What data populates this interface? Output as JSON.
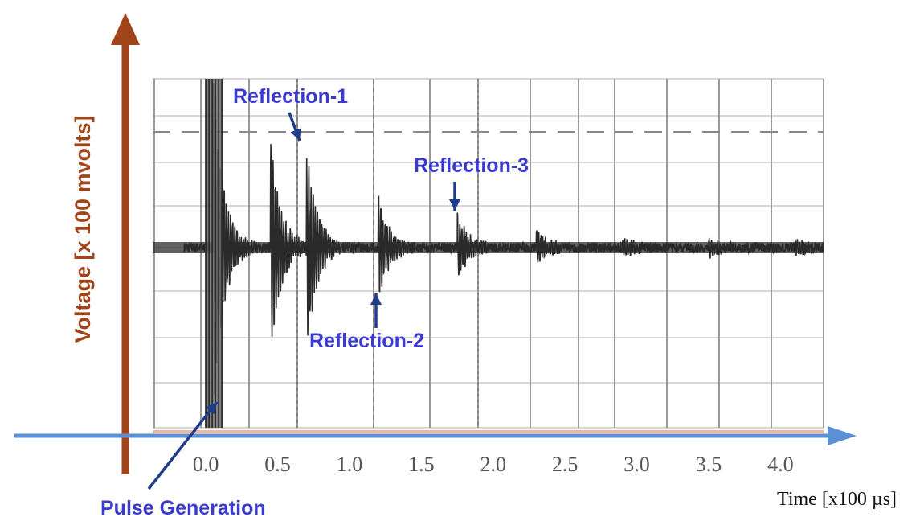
{
  "chart_data": {
    "type": "line",
    "title": "",
    "xlabel": "Time [x100 µs]",
    "ylabel": "Voltage [x 100 mvolts]",
    "x_ticks": [
      "0.0",
      "0.5",
      "1.0",
      "1.5",
      "2.0",
      "2.5",
      "3.0",
      "3.5",
      "4.0"
    ],
    "xlim": [
      -0.37,
      4.3
    ],
    "grid": true,
    "threshold_style": "dashed",
    "series": [
      {
        "bursts": [
          {
            "t": 0.05,
            "amplitude": 6.0
          },
          {
            "t": 0.45,
            "amplitude": 4.0
          },
          {
            "t": 0.7,
            "amplitude": 3.8
          },
          {
            "t": 1.2,
            "amplitude": 1.8
          },
          {
            "t": 1.75,
            "amplitude": 1.2
          },
          {
            "t": 2.3,
            "amplitude": 0.6
          },
          {
            "t": 2.9,
            "amplitude": 0.3
          },
          {
            "t": 3.5,
            "amplitude": 0.3
          },
          {
            "t": 4.1,
            "amplitude": 0.2
          }
        ],
        "noise_level": 0.18
      }
    ],
    "annotations": [
      {
        "text": "Reflection-1",
        "t": 0.7
      },
      {
        "text": "Reflection-2",
        "t": 1.2
      },
      {
        "text": "Reflection-3",
        "t": 1.75
      },
      {
        "text": "Pulse Generation",
        "t": 0.05
      }
    ],
    "colors": {
      "signal": "#2b2b2b",
      "grid": "#9a9a9a",
      "y_axis_arrow": "#a0441a",
      "x_axis_arrow": "#5b8fd6",
      "annotation_text": "#3a3ad0",
      "annotation_arrow": "#1f3d8a"
    }
  }
}
